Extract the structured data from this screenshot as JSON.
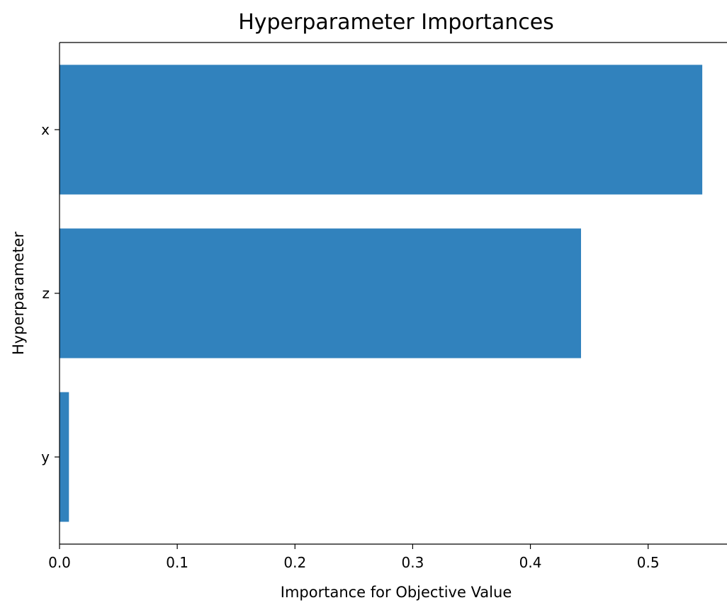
{
  "chart_data": {
    "type": "bar",
    "orientation": "horizontal",
    "title": "Hyperparameter Importances",
    "xlabel": "Importance for Objective Value",
    "ylabel": "Hyperparameter",
    "categories": [
      "y",
      "z",
      "x"
    ],
    "values": [
      0.008,
      0.443,
      0.546
    ],
    "xlim": [
      0,
      0.567
    ],
    "xticks": [
      0.0,
      0.1,
      0.2,
      0.3,
      0.4,
      0.5
    ],
    "xtick_labels": [
      "0.0",
      "0.1",
      "0.2",
      "0.3",
      "0.4",
      "0.5"
    ],
    "bar_color": "#3182bd",
    "grid": false,
    "legend": "none"
  }
}
